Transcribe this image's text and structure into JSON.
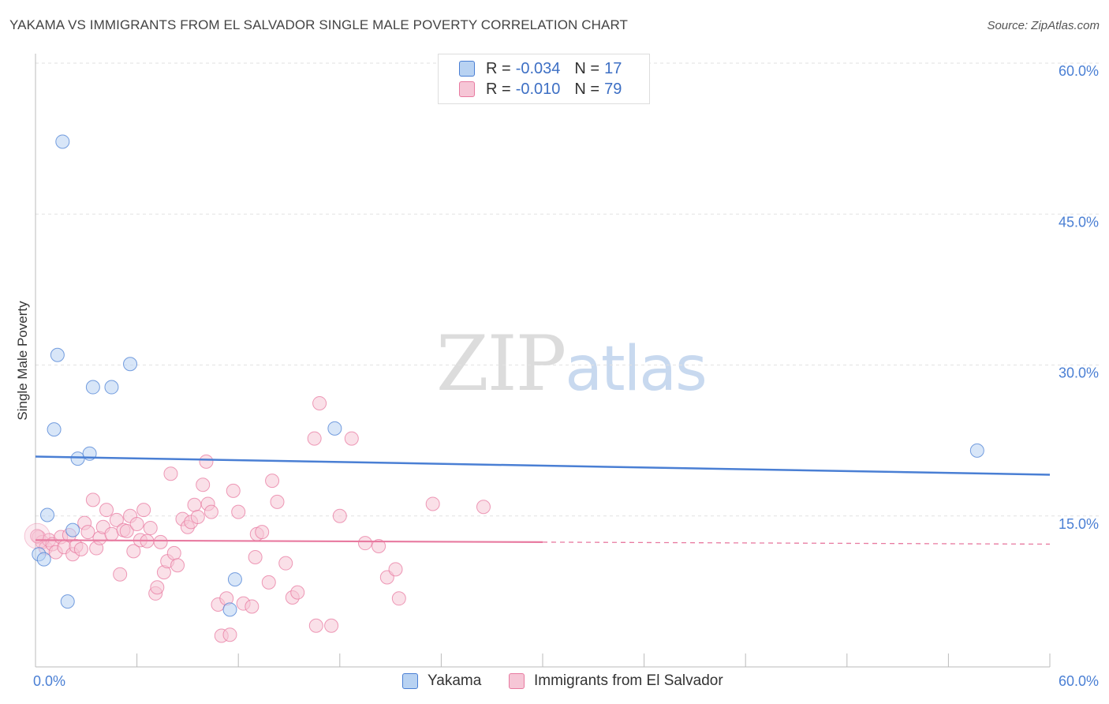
{
  "header": {
    "title": "YAKAMA VS IMMIGRANTS FROM EL SALVADOR SINGLE MALE POVERTY CORRELATION CHART",
    "source": "Source: ZipAtlas.com"
  },
  "watermark": {
    "zip": "ZIP",
    "atlas": "atlas"
  },
  "legend": {
    "rows": [
      {
        "r_label": "R = ",
        "r_value": "-0.034",
        "n_label": "N = ",
        "n_value": "17"
      },
      {
        "r_label": "R = ",
        "r_value": "-0.010",
        "n_label": "N = ",
        "n_value": "79"
      }
    ]
  },
  "chart_data": {
    "type": "scatter",
    "title": "YAKAMA VS IMMIGRANTS FROM EL SALVADOR SINGLE MALE POVERTY CORRELATION CHART",
    "xlabel": "",
    "ylabel": "Single Male Poverty",
    "xlim": [
      0,
      60
    ],
    "ylim": [
      0,
      60
    ],
    "x_tick_labels": [
      "0.0%",
      "60.0%"
    ],
    "y_ticks": [
      15,
      30,
      45,
      60
    ],
    "y_tick_labels": [
      "15.0%",
      "30.0%",
      "45.0%",
      "60.0%"
    ],
    "grid": true,
    "legend_position": "top-center",
    "colors": {
      "Yakama": "#4a7fd4",
      "Immigrants from El Salvador": "#e87aa0"
    },
    "series": [
      {
        "name": "Yakama",
        "color": "#4a7fd4",
        "fill": "#b8d2f2",
        "r": -0.034,
        "n": 17,
        "trend": {
          "x": [
            0,
            60
          ],
          "y": [
            20.9,
            19.1
          ],
          "dashed_from": null
        },
        "points": [
          {
            "x": 1.6,
            "y": 52.2
          },
          {
            "x": 1.3,
            "y": 31.0
          },
          {
            "x": 3.4,
            "y": 27.8
          },
          {
            "x": 4.5,
            "y": 27.8
          },
          {
            "x": 5.6,
            "y": 30.1
          },
          {
            "x": 1.1,
            "y": 23.6
          },
          {
            "x": 2.5,
            "y": 20.7
          },
          {
            "x": 3.2,
            "y": 21.2
          },
          {
            "x": 17.7,
            "y": 23.7
          },
          {
            "x": 55.7,
            "y": 21.5
          },
          {
            "x": 0.7,
            "y": 15.1
          },
          {
            "x": 2.2,
            "y": 13.6
          },
          {
            "x": 0.2,
            "y": 11.2
          },
          {
            "x": 0.5,
            "y": 10.7
          },
          {
            "x": 1.9,
            "y": 6.5
          },
          {
            "x": 11.8,
            "y": 8.7
          },
          {
            "x": 11.5,
            "y": 5.7
          }
        ]
      },
      {
        "name": "Immigrants from El Salvador",
        "color": "#e87aa0",
        "fill": "#f6c6d6",
        "r": -0.01,
        "n": 79,
        "trend": {
          "x": [
            0,
            60
          ],
          "y": [
            12.6,
            12.2
          ],
          "dashed_from": 30
        },
        "points": [
          {
            "x": 0.2,
            "y": 12.9
          },
          {
            "x": 0.4,
            "y": 12.4
          },
          {
            "x": 0.6,
            "y": 11.8
          },
          {
            "x": 0.8,
            "y": 12.6
          },
          {
            "x": 1.0,
            "y": 12.2
          },
          {
            "x": 1.2,
            "y": 11.4
          },
          {
            "x": 1.5,
            "y": 12.9
          },
          {
            "x": 1.7,
            "y": 11.9
          },
          {
            "x": 2.0,
            "y": 13.1
          },
          {
            "x": 2.2,
            "y": 11.2
          },
          {
            "x": 2.4,
            "y": 12.0
          },
          {
            "x": 2.7,
            "y": 11.7
          },
          {
            "x": 2.9,
            "y": 14.3
          },
          {
            "x": 3.1,
            "y": 13.4
          },
          {
            "x": 3.4,
            "y": 16.6
          },
          {
            "x": 3.6,
            "y": 11.8
          },
          {
            "x": 3.8,
            "y": 12.8
          },
          {
            "x": 4.0,
            "y": 13.9
          },
          {
            "x": 4.2,
            "y": 15.6
          },
          {
            "x": 4.5,
            "y": 13.2
          },
          {
            "x": 4.8,
            "y": 14.6
          },
          {
            "x": 5.0,
            "y": 9.2
          },
          {
            "x": 5.2,
            "y": 13.6
          },
          {
            "x": 5.4,
            "y": 13.5
          },
          {
            "x": 5.6,
            "y": 15.0
          },
          {
            "x": 5.8,
            "y": 11.5
          },
          {
            "x": 6.0,
            "y": 14.2
          },
          {
            "x": 6.2,
            "y": 12.6
          },
          {
            "x": 6.4,
            "y": 15.6
          },
          {
            "x": 6.6,
            "y": 12.5
          },
          {
            "x": 6.8,
            "y": 13.8
          },
          {
            "x": 7.1,
            "y": 7.3
          },
          {
            "x": 7.2,
            "y": 7.9
          },
          {
            "x": 7.4,
            "y": 12.4
          },
          {
            "x": 7.6,
            "y": 9.4
          },
          {
            "x": 7.8,
            "y": 10.5
          },
          {
            "x": 8.0,
            "y": 19.2
          },
          {
            "x": 8.2,
            "y": 11.3
          },
          {
            "x": 8.4,
            "y": 10.1
          },
          {
            "x": 8.7,
            "y": 14.7
          },
          {
            "x": 9.0,
            "y": 13.9
          },
          {
            "x": 9.2,
            "y": 14.4
          },
          {
            "x": 9.4,
            "y": 16.1
          },
          {
            "x": 9.6,
            "y": 14.9
          },
          {
            "x": 9.9,
            "y": 18.1
          },
          {
            "x": 10.1,
            "y": 20.4
          },
          {
            "x": 10.2,
            "y": 16.2
          },
          {
            "x": 10.4,
            "y": 15.4
          },
          {
            "x": 10.8,
            "y": 6.2
          },
          {
            "x": 11.0,
            "y": 3.1
          },
          {
            "x": 11.3,
            "y": 6.8
          },
          {
            "x": 11.5,
            "y": 3.2
          },
          {
            "x": 11.7,
            "y": 17.5
          },
          {
            "x": 12.0,
            "y": 15.4
          },
          {
            "x": 12.3,
            "y": 6.3
          },
          {
            "x": 12.8,
            "y": 6.0
          },
          {
            "x": 13.0,
            "y": 10.9
          },
          {
            "x": 13.1,
            "y": 13.2
          },
          {
            "x": 13.4,
            "y": 13.4
          },
          {
            "x": 13.8,
            "y": 8.4
          },
          {
            "x": 14.0,
            "y": 18.5
          },
          {
            "x": 14.3,
            "y": 16.4
          },
          {
            "x": 14.8,
            "y": 10.3
          },
          {
            "x": 15.2,
            "y": 6.9
          },
          {
            "x": 15.5,
            "y": 7.4
          },
          {
            "x": 16.5,
            "y": 22.7
          },
          {
            "x": 16.6,
            "y": 4.1
          },
          {
            "x": 16.8,
            "y": 26.2
          },
          {
            "x": 17.5,
            "y": 4.1
          },
          {
            "x": 18.0,
            "y": 15.0
          },
          {
            "x": 18.7,
            "y": 22.7
          },
          {
            "x": 19.5,
            "y": 12.3
          },
          {
            "x": 20.3,
            "y": 12.0
          },
          {
            "x": 20.8,
            "y": 8.9
          },
          {
            "x": 21.3,
            "y": 9.7
          },
          {
            "x": 21.5,
            "y": 6.8
          },
          {
            "x": 23.5,
            "y": 16.2
          },
          {
            "x": 26.5,
            "y": 15.9
          },
          {
            "x": 0.1,
            "y": 13.0
          }
        ]
      }
    ]
  },
  "bottom_legend": {
    "items": [
      "Yakama",
      "Immigrants from El Salvador"
    ]
  }
}
